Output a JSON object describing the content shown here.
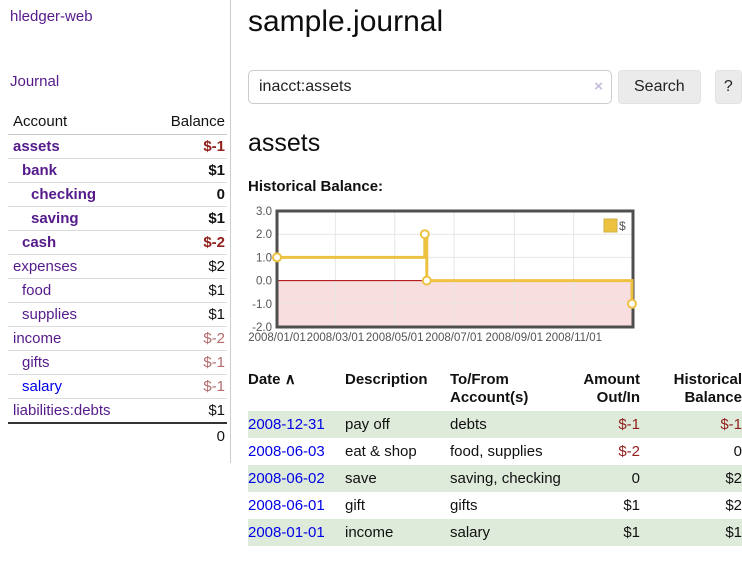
{
  "app": {
    "title": "hledger-web"
  },
  "colors": {
    "link_purple": "#551a8b",
    "link_blue": "#0000e6",
    "negative_red": "#92201d",
    "negative_faded_red": "#b36b6b",
    "row_green": "#deeada",
    "chart_gold": "#edc240"
  },
  "sidebar": {
    "journal_label": "Journal",
    "accounts_table": {
      "headers": {
        "account": "Account",
        "balance": "Balance"
      },
      "rows": [
        {
          "label": "assets",
          "depth": 1,
          "bold": true,
          "amount": "$-1",
          "amount_style": "neg"
        },
        {
          "label": "bank",
          "depth": 2,
          "bold": true,
          "amount": "$1",
          "amount_style": "pos"
        },
        {
          "label": "checking",
          "depth": 3,
          "bold": true,
          "amount": "0",
          "amount_style": "pos"
        },
        {
          "label": "saving",
          "depth": 3,
          "bold": true,
          "amount": "$1",
          "amount_style": "pos"
        },
        {
          "label": "cash",
          "depth": 2,
          "bold": true,
          "amount": "$-2",
          "amount_style": "neg"
        },
        {
          "label": "expenses",
          "depth": 1,
          "bold": false,
          "amount": "$2",
          "amount_style": "pos"
        },
        {
          "label": "food",
          "depth": 2,
          "bold": false,
          "amount": "$1",
          "amount_style": "pos"
        },
        {
          "label": "supplies",
          "depth": 2,
          "bold": false,
          "amount": "$1",
          "amount_style": "pos"
        },
        {
          "label": "income",
          "depth": 1,
          "bold": false,
          "amount": "$-2",
          "amount_style": "faded"
        },
        {
          "label": "gifts",
          "depth": 2,
          "bold": false,
          "amount": "$-1",
          "amount_style": "faded"
        },
        {
          "label": "salary",
          "depth": 2,
          "bold": false,
          "amount": "$-1",
          "amount_style": "faded",
          "link_style": "unvisited"
        },
        {
          "label": "liabilities:debts",
          "depth": 1,
          "bold": false,
          "amount": "$1",
          "amount_style": "pos"
        }
      ],
      "total": "0"
    }
  },
  "main": {
    "title": "sample.journal",
    "search": {
      "value": "inacct:assets",
      "clear_icon": "×",
      "button_label": "Search",
      "help_label": "?"
    },
    "account_heading": "assets",
    "chart_heading": "Historical Balance:",
    "register_table": {
      "headers": {
        "date": "Date",
        "sort_icon": "∧",
        "description": "Description",
        "accounts": "To/From Account(s)",
        "amount": "Amount Out/In",
        "balance": "Historical Balance"
      },
      "rows": [
        {
          "date": "2008-12-31",
          "description": "pay off",
          "accounts": "debts",
          "amount": "$-1",
          "amount_style": "neg",
          "balance": "$-1",
          "balance_style": "neg"
        },
        {
          "date": "2008-06-03",
          "description": "eat & shop",
          "accounts": "food, supplies",
          "amount": "$-2",
          "amount_style": "neg",
          "balance": "0",
          "balance_style": "pos"
        },
        {
          "date": "2008-06-02",
          "description": "save",
          "accounts": "saving, checking",
          "amount": "0",
          "amount_style": "pos",
          "balance": "$2",
          "balance_style": "pos"
        },
        {
          "date": "2008-06-01",
          "description": "gift",
          "accounts": "gifts",
          "amount": "$1",
          "amount_style": "pos",
          "balance": "$2",
          "balance_style": "pos"
        },
        {
          "date": "2008-01-01",
          "description": "income",
          "accounts": "salary",
          "amount": "$1",
          "amount_style": "pos",
          "balance": "$1",
          "balance_style": "pos"
        }
      ]
    }
  },
  "chart_data": {
    "type": "line",
    "title": "Historical Balance",
    "step": true,
    "series": [
      {
        "name": "$",
        "color": "#edc240",
        "points": [
          [
            "2008-01-01",
            1
          ],
          [
            "2008-06-01",
            2
          ],
          [
            "2008-06-03",
            0
          ],
          [
            "2008-12-31",
            -1
          ]
        ]
      }
    ],
    "x_domain": [
      "2008-01-01",
      "2009-01-01"
    ],
    "x_tick_dates": [
      "2008-01-01",
      "2008-03-01",
      "2008-05-01",
      "2008-07-01",
      "2008-09-01",
      "2008-11-01"
    ],
    "x_tick_labels": [
      "2008/01/01",
      "2008/03/01",
      "2008/05/01",
      "2008/07/01",
      "2008/09/01",
      "2008/11/01"
    ],
    "y_ticks": [
      "3.0",
      "2.0",
      "1.0",
      "0.0",
      "-1.0",
      "-2.0"
    ],
    "ylim": [
      -2,
      3
    ],
    "grid": true,
    "legend_position": "top-right",
    "negative_region_fill": "#f8dede",
    "zero_line_color": "#aa0000",
    "grid_line_color": "#e6e6e6",
    "border_color": "#4f4f4f",
    "tick_label_color": "#545454"
  }
}
